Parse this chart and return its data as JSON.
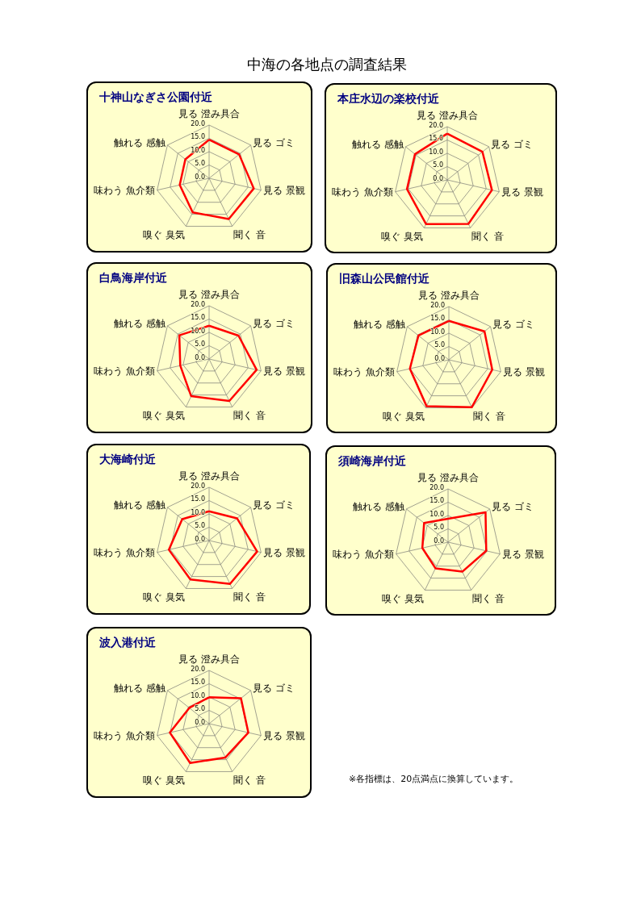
{
  "chart_data": [
    {
      "type": "other",
      "title": "中海の各地点の調査結果"
    },
    {
      "type": "radar",
      "title": "十神山なぎさ公園付近",
      "categories": [
        "見る 澄み具合",
        "見る ゴミ",
        "見る 景観",
        "聞く 音",
        "嗅ぐ 臭気",
        "味わう 魚介類",
        "触れる 感触"
      ],
      "series": [
        {
          "color": "#ff0000",
          "values": [
            14.5,
            14.4,
            17.2,
            17.0,
            14.2,
            11.3,
            11.4
          ]
        }
      ],
      "ylim": [
        0,
        20
      ],
      "yticks": [
        {
          "value": 0,
          "label": "0.0"
        },
        {
          "value": 5,
          "label": "5.0"
        },
        {
          "value": 10,
          "label": "10.0"
        },
        {
          "value": 15,
          "label": "15.0"
        },
        {
          "value": 20,
          "label": "20.0"
        }
      ],
      "grid": true
    },
    {
      "type": "radar",
      "title": "本庄水辺の楽校付近",
      "categories": [
        "見る 澄み具合",
        "見る ゴミ",
        "見る 景観",
        "聞く 音",
        "嗅ぐ 臭気",
        "味わう 魚介類",
        "触れる 感触"
      ],
      "series": [
        {
          "color": "#ff0000",
          "values": [
            17.4,
            16.9,
            17.2,
            18.3,
            18.4,
            15.5,
            15.5
          ]
        }
      ],
      "ylim": [
        0,
        20
      ],
      "yticks": [
        {
          "value": 0,
          "label": "0.0"
        },
        {
          "value": 5,
          "label": "5.0"
        },
        {
          "value": 10,
          "label": "10.0"
        },
        {
          "value": 15,
          "label": "15.0"
        },
        {
          "value": 20,
          "label": "20.0"
        }
      ],
      "grid": true
    },
    {
      "type": "radar",
      "title": "白鳥海岸付近",
      "categories": [
        "見る 澄み具合",
        "見る ゴミ",
        "見る 景観",
        "聞く 音",
        "嗅ぐ 臭気",
        "味わう 魚介類",
        "触れる 感触"
      ],
      "series": [
        {
          "color": "#ff0000",
          "values": [
            12.5,
            14.1,
            18.3,
            17.5,
            15.5,
            11.1,
            14.3
          ]
        }
      ],
      "ylim": [
        0,
        20
      ],
      "yticks": [
        {
          "value": 0,
          "label": "0.0"
        },
        {
          "value": 5,
          "label": "5.0"
        },
        {
          "value": 10,
          "label": "10.0"
        },
        {
          "value": 15,
          "label": "15.0"
        },
        {
          "value": 20,
          "label": "20.0"
        }
      ],
      "grid": true
    },
    {
      "type": "radar",
      "title": "旧森山公民館付近",
      "categories": [
        "見る 澄み具合",
        "見る ゴミ",
        "見る 景観",
        "聞く 音",
        "嗅ぐ 臭気",
        "味わう 魚介類",
        "触れる 感触"
      ],
      "series": [
        {
          "color": "#ff0000",
          "values": [
            14.6,
            17.1,
            16.7,
            19.8,
            19.3,
            15.0,
            14.6
          ]
        }
      ],
      "ylim": [
        0,
        20
      ],
      "yticks": [
        {
          "value": 0,
          "label": "0.0"
        },
        {
          "value": 5,
          "label": "5.0"
        },
        {
          "value": 10,
          "label": "10.0"
        },
        {
          "value": 15,
          "label": "15.0"
        },
        {
          "value": 20,
          "label": "20.0"
        }
      ],
      "grid": true
    },
    {
      "type": "radar",
      "title": "大海崎付近",
      "categories": [
        "見る 澄み具合",
        "見る ゴミ",
        "見る 景観",
        "聞く 音",
        "嗅ぐ 臭気",
        "味わう 魚介類",
        "触れる 感触"
      ],
      "series": [
        {
          "color": "#ff0000",
          "values": [
            11.0,
            13.4,
            18.5,
            18.1,
            16.2,
            15.5,
            12.9
          ]
        }
      ],
      "ylim": [
        0,
        20
      ],
      "yticks": [
        {
          "value": 0,
          "label": "0.0"
        },
        {
          "value": 5,
          "label": "5.0"
        },
        {
          "value": 10,
          "label": "10.0"
        },
        {
          "value": 15,
          "label": "15.0"
        },
        {
          "value": 20,
          "label": "20.0"
        }
      ],
      "grid": true
    },
    {
      "type": "radar",
      "title": "須崎海岸付近",
      "categories": [
        "見る 澄み具合",
        "見る ゴミ",
        "見る 景観",
        "聞く 音",
        "嗅ぐ 臭気",
        "味わう 魚介類",
        "触れる 感触"
      ],
      "series": [
        {
          "color": "#ff0000",
          "values": [
            8.8,
            18.0,
            14.7,
            12.3,
            10.9,
            9.9,
            11.5
          ]
        }
      ],
      "ylim": [
        0,
        20
      ],
      "yticks": [
        {
          "value": 0,
          "label": "0.0"
        },
        {
          "value": 5,
          "label": "5.0"
        },
        {
          "value": 10,
          "label": "10.0"
        },
        {
          "value": 15,
          "label": "15.0"
        },
        {
          "value": 20,
          "label": "20.0"
        }
      ],
      "grid": true
    },
    {
      "type": "radar",
      "title": "波入港付近",
      "categories": [
        "見る 澄み具合",
        "見る ゴミ",
        "見る 景観",
        "聞く 音",
        "嗅ぐ 臭気",
        "味わう 魚介類",
        "触れる 感触"
      ],
      "series": [
        {
          "color": "#ff0000",
          "values": [
            9.9,
            15.3,
            15.1,
            14.1,
            16.4,
            15.1,
            9.5
          ]
        }
      ],
      "ylim": [
        0,
        20
      ],
      "yticks": [
        {
          "value": 0,
          "label": "0.0"
        },
        {
          "value": 5,
          "label": "5.0"
        },
        {
          "value": 10,
          "label": "10.0"
        },
        {
          "value": 15,
          "label": "15.0"
        },
        {
          "value": 20,
          "label": "20.0"
        }
      ],
      "grid": true
    },
    {
      "type": "other",
      "annotations": [
        "※各指標は、20点満点に換算しています。"
      ]
    }
  ]
}
